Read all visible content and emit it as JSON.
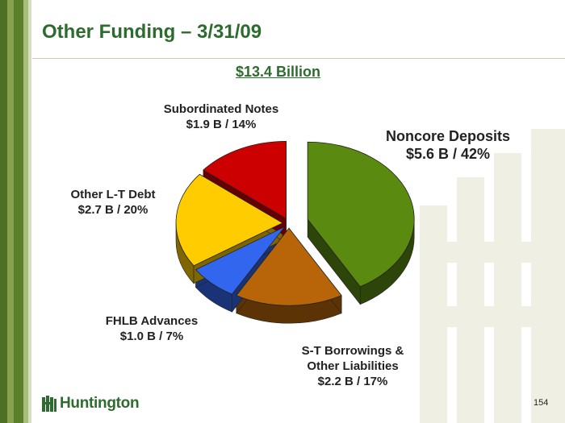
{
  "slide": {
    "title": "Other Funding – 3/31/09",
    "subtitle": "$13.4 Billion",
    "page_number": "154",
    "logo_text": "Huntington"
  },
  "chart_data": {
    "type": "pie",
    "title": "$13.4 Billion",
    "total_billions": 13.4,
    "slices": [
      {
        "name": "Noncore Deposits",
        "value": 5.6,
        "percent": 42,
        "label_line1": "Noncore Deposits",
        "label_line2": "$5.6 B / 42%",
        "color": "#5a8a10",
        "exploded": true
      },
      {
        "name": "S-T Borrowings & Other Liabilities",
        "value": 2.2,
        "percent": 17,
        "label_line1": "S-T Borrowings &",
        "label_line2": "Other Liabilities",
        "label_line3": "$2.2 B / 17%",
        "color": "#b8650a",
        "exploded": false
      },
      {
        "name": "FHLB Advances",
        "value": 1.0,
        "percent": 7,
        "label_line1": "FHLB Advances",
        "label_line2": "$1.0 B / 7%",
        "color": "#3366ee",
        "exploded": false
      },
      {
        "name": "Other L-T Debt",
        "value": 2.7,
        "percent": 20,
        "label_line1": "Other L-T Debt",
        "label_line2": "$2.7 B / 20%",
        "color": "#ffcc00",
        "exploded": false
      },
      {
        "name": "Subordinated Notes",
        "value": 1.9,
        "percent": 14,
        "label_line1": "Subordinated Notes",
        "label_line2": "$1.9 B / 14%",
        "color": "#cc0000",
        "exploded": false
      }
    ]
  },
  "colors": {
    "title": "#2e6b2e",
    "stripe_dark": "#5b7f2a",
    "stripe_mid": "#7d9a45",
    "stripe_light": "#a9bd7a",
    "watermark": "#efefe3"
  }
}
